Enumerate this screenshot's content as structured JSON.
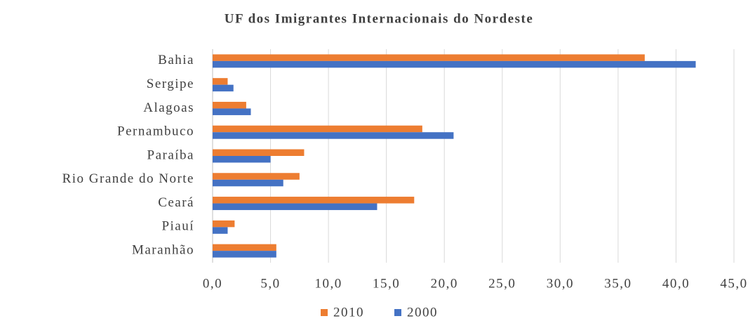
{
  "chart_data": {
    "type": "hbar",
    "title": "UF dos Imigrantes Internacionais do Nordeste",
    "categories": [
      "Bahia",
      "Sergipe",
      "Alagoas",
      "Pernambuco",
      "Paraíba",
      "Rio Grande do Norte",
      "Ceará",
      "Piauí",
      "Maranhão"
    ],
    "series": [
      {
        "name": "2010",
        "color": "#ED7D31",
        "values": [
          37.3,
          1.3,
          2.9,
          18.1,
          7.9,
          7.5,
          17.4,
          1.9,
          5.5
        ]
      },
      {
        "name": "2000",
        "color": "#4472C4",
        "values": [
          41.7,
          1.8,
          3.3,
          20.8,
          5.0,
          6.1,
          14.2,
          1.3,
          5.5
        ]
      }
    ],
    "xlim": [
      0,
      45
    ],
    "xticks": [
      {
        "value": 0,
        "label": "0,0"
      },
      {
        "value": 5,
        "label": "5,0"
      },
      {
        "value": 10,
        "label": "10,0"
      },
      {
        "value": 15,
        "label": "15,0"
      },
      {
        "value": 20,
        "label": "20,0"
      },
      {
        "value": 25,
        "label": "25,0"
      },
      {
        "value": 30,
        "label": "30,0"
      },
      {
        "value": 35,
        "label": "35,0"
      },
      {
        "value": 40,
        "label": "40,0"
      },
      {
        "value": 45,
        "label": "45,0"
      }
    ],
    "grid": true,
    "legend": "bottom"
  }
}
